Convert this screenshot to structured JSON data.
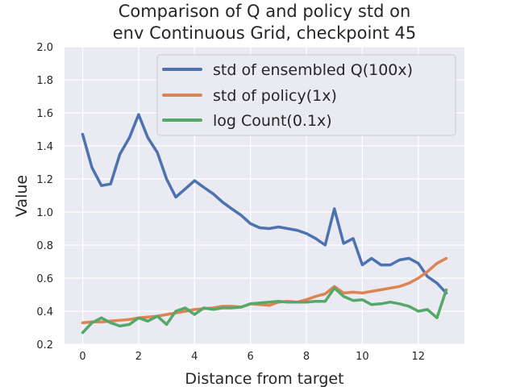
{
  "chart_data": {
    "type": "line",
    "title_line1": "Comparison of Q and policy std on",
    "title_line2": "env Continuous Grid, checkpoint 45",
    "xlabel": "Distance from target",
    "ylabel": "Value",
    "xlim": [
      -0.65,
      13.65
    ],
    "ylim": [
      0.2,
      2.0
    ],
    "xticks": [
      0,
      2,
      4,
      6,
      8,
      10,
      12
    ],
    "yticks": [
      0.2,
      0.4,
      0.6,
      0.8,
      1.0,
      1.2,
      1.4,
      1.6,
      1.8,
      2.0
    ],
    "grid": true,
    "legend_position": "upper right",
    "x": [
      0,
      0.33,
      0.67,
      1.0,
      1.33,
      1.67,
      2.0,
      2.33,
      2.67,
      3.0,
      3.33,
      3.67,
      4.0,
      4.33,
      4.67,
      5.0,
      5.33,
      5.67,
      6.0,
      6.33,
      6.67,
      7.0,
      7.33,
      7.67,
      8.0,
      8.33,
      8.67,
      9.0,
      9.33,
      9.67,
      10.0,
      10.33,
      10.67,
      11.0,
      11.33,
      11.67,
      12.0,
      12.33,
      12.67,
      13.0
    ],
    "series": [
      {
        "name": "std of ensembled Q(100x)",
        "color": "#4c72b0",
        "values": [
          1.47,
          1.27,
          1.16,
          1.17,
          1.35,
          1.45,
          1.59,
          1.45,
          1.36,
          1.2,
          1.09,
          1.14,
          1.19,
          1.15,
          1.11,
          1.06,
          1.02,
          0.98,
          0.93,
          0.905,
          0.9,
          0.91,
          0.9,
          0.89,
          0.87,
          0.84,
          0.8,
          1.02,
          0.81,
          0.84,
          0.68,
          0.72,
          0.68,
          0.68,
          0.71,
          0.72,
          0.69,
          0.61,
          0.57,
          0.51
        ]
      },
      {
        "name": "std of policy(1x)",
        "color": "#dd8452",
        "values": [
          0.33,
          0.335,
          0.335,
          0.34,
          0.345,
          0.35,
          0.36,
          0.365,
          0.37,
          0.38,
          0.39,
          0.4,
          0.41,
          0.415,
          0.42,
          0.43,
          0.43,
          0.425,
          0.445,
          0.44,
          0.435,
          0.455,
          0.46,
          0.455,
          0.47,
          0.49,
          0.505,
          0.55,
          0.51,
          0.515,
          0.51,
          0.52,
          0.53,
          0.54,
          0.55,
          0.57,
          0.6,
          0.64,
          0.69,
          0.72
        ]
      },
      {
        "name": "log Count(0.1x)",
        "color": "#55a868",
        "values": [
          0.27,
          0.33,
          0.36,
          0.33,
          0.31,
          0.32,
          0.36,
          0.34,
          0.37,
          0.32,
          0.4,
          0.42,
          0.38,
          0.42,
          0.41,
          0.42,
          0.42,
          0.425,
          0.445,
          0.45,
          0.455,
          0.46,
          0.455,
          0.455,
          0.455,
          0.46,
          0.46,
          0.54,
          0.49,
          0.465,
          0.47,
          0.44,
          0.445,
          0.455,
          0.445,
          0.43,
          0.4,
          0.41,
          0.36,
          0.53
        ]
      }
    ]
  }
}
